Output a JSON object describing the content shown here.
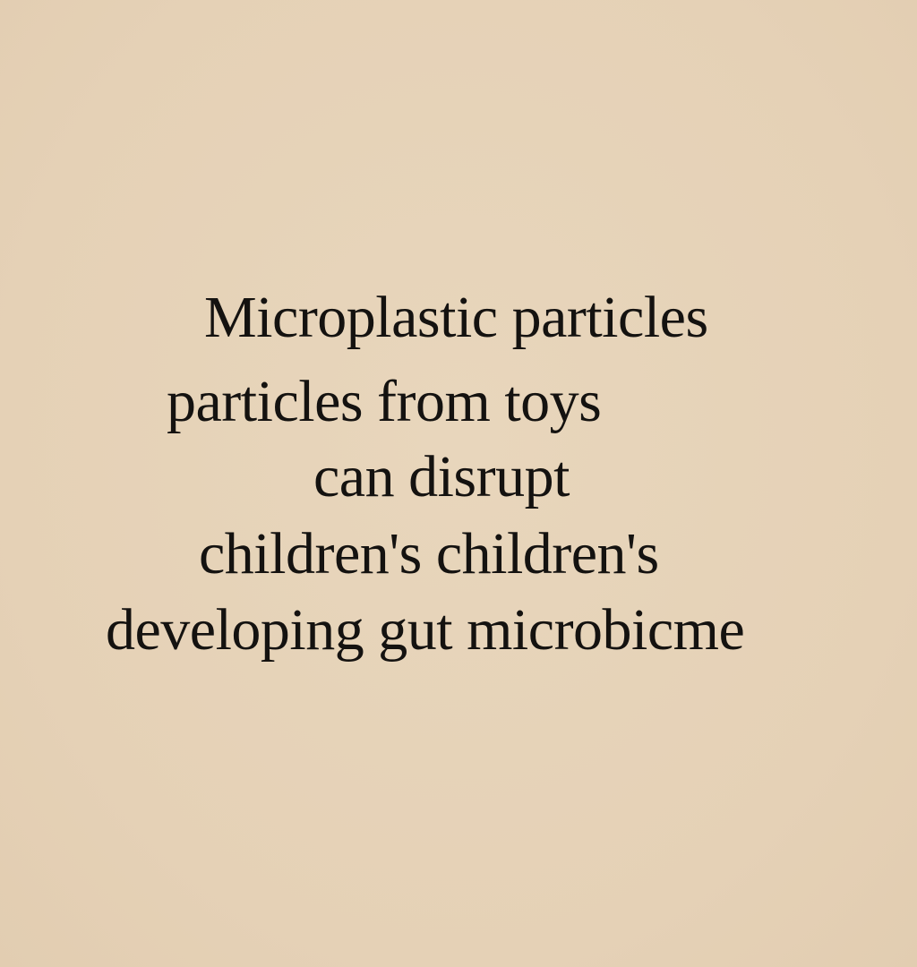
{
  "text": {
    "lines": [
      "Microplastic particles",
      "particles from toys",
      "can disrupt",
      "children's children's",
      "developing gut microbicme"
    ]
  }
}
